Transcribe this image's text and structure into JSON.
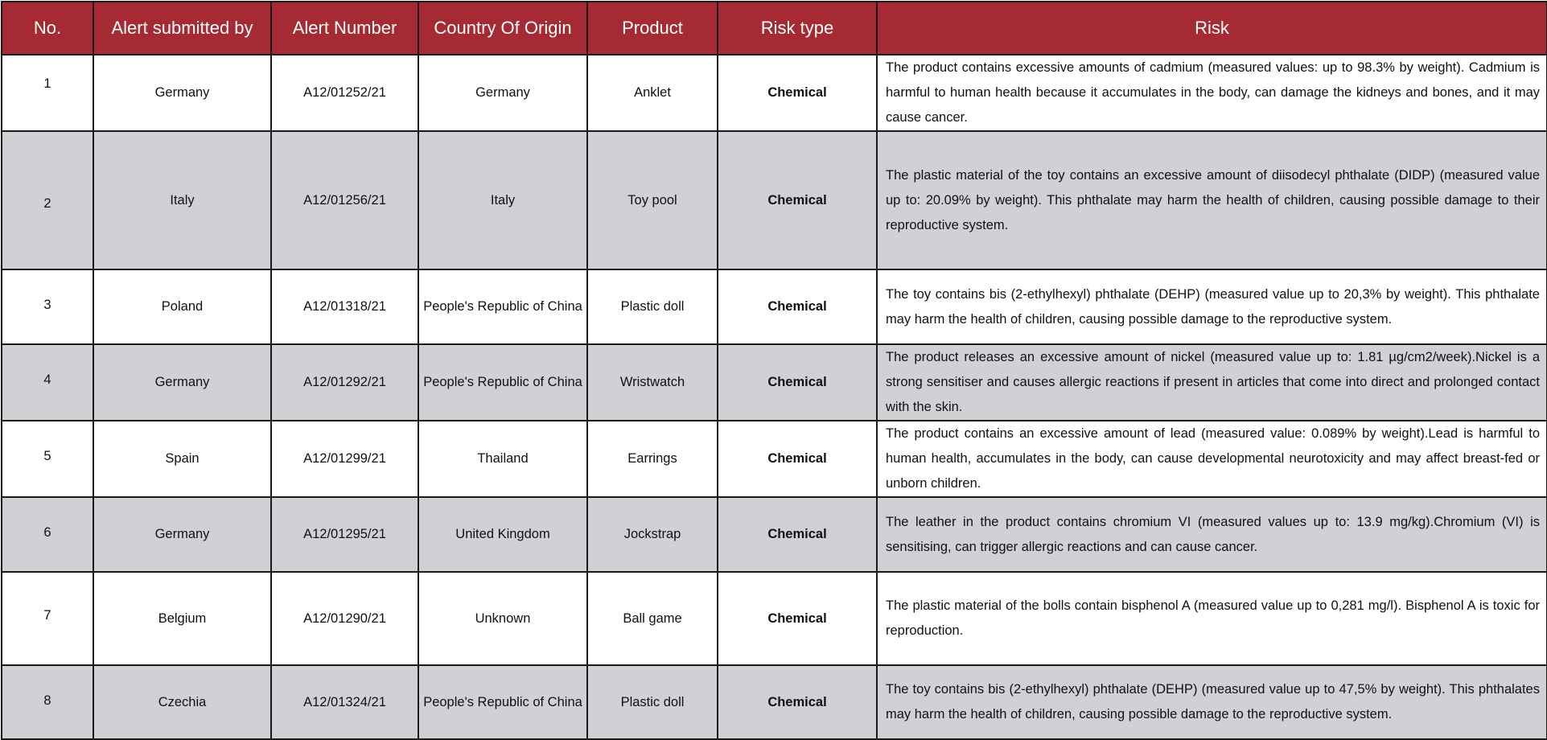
{
  "table": {
    "headers": {
      "no": "No.",
      "submitted_by": "Alert submitted by",
      "alert_number": "Alert Number",
      "origin": "Country Of Origin",
      "product": "Product",
      "risk_type": "Risk type",
      "risk": "Risk"
    },
    "rows": [
      {
        "no": "1",
        "submitted_by": "Germany",
        "alert_number": "A12/01252/21",
        "origin": "Germany",
        "product": "Anklet",
        "risk_type": "Chemical",
        "risk": "The product contains excessive amounts of cadmium (measured values: up to 98.3% by weight). Cadmium is harmful to human health because it accumulates in the body, can damage the kidneys and bones, and it may cause cancer."
      },
      {
        "no": "2",
        "submitted_by": "Italy",
        "alert_number": "A12/01256/21",
        "origin": "Italy",
        "product": "Toy pool",
        "risk_type": "Chemical",
        "risk": "The plastic material of the toy contains an excessive amount of diisodecyl phthalate (DIDP) (measured value up to: 20.09% by weight). This phthalate may harm the health of children, causing possible damage to their reproductive system."
      },
      {
        "no": "3",
        "submitted_by": "Poland",
        "alert_number": "A12/01318/21",
        "origin": "People's Republic of China",
        "product": "Plastic doll",
        "risk_type": "Chemical",
        "risk": "The toy contains bis (2-ethylhexyl) phthalate (DEHP) (measured value up to 20,3% by weight). This phthalate may harm the health of children, causing possible damage to the reproductive system."
      },
      {
        "no": "4",
        "submitted_by": "Germany",
        "alert_number": "A12/01292/21",
        "origin": "People's Republic of China",
        "product": "Wristwatch",
        "risk_type": "Chemical",
        "risk": "The product releases an excessive amount of nickel (measured value up to: 1.81 µg/cm2/week).Nickel is a strong sensitiser and causes allergic reactions if present in articles that come into direct and prolonged contact with the skin."
      },
      {
        "no": "5",
        "submitted_by": "Spain",
        "alert_number": "A12/01299/21",
        "origin": "Thailand",
        "product": "Earrings",
        "risk_type": "Chemical",
        "risk": "The product contains an excessive amount of lead (measured value: 0.089% by weight).Lead is harmful to human health, accumulates in the body, can cause developmental neurotoxicity and may affect breast-fed or unborn children."
      },
      {
        "no": "6",
        "submitted_by": "Germany",
        "alert_number": "A12/01295/21",
        "origin": "United Kingdom",
        "product": "Jockstrap",
        "risk_type": "Chemical",
        "risk": "The leather in the product contains chromium VI (measured values up to: 13.9 mg/kg).Chromium (VI) is sensitising, can trigger allergic reactions and can cause cancer."
      },
      {
        "no": "7",
        "submitted_by": "Belgium",
        "alert_number": "A12/01290/21",
        "origin": "Unknown",
        "product": "Ball game",
        "risk_type": "Chemical",
        "risk": "The plastic material of the bolls contain bisphenol A (measured value up to 0,281 mg/l). Bisphenol A is toxic for reproduction."
      },
      {
        "no": "8",
        "submitted_by": "Czechia",
        "alert_number": "A12/01324/21",
        "origin": "People's Republic of China",
        "product": "Plastic doll",
        "risk_type": "Chemical",
        "risk": "The toy contains bis (2-ethylhexyl) phthalate (DEHP) (measured value up to 47,5% by weight). This phthalates may harm the health of children, causing possible damage to the reproductive system."
      }
    ]
  }
}
